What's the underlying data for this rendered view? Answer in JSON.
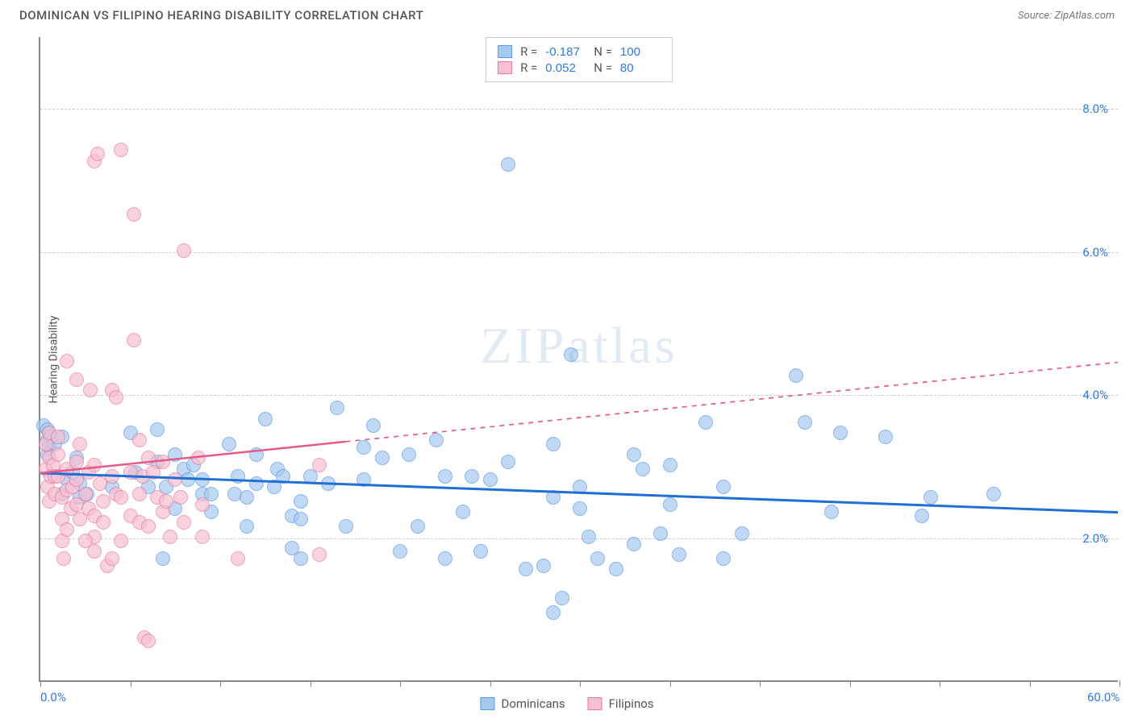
{
  "header": {
    "title": "DOMINICAN VS FILIPINO HEARING DISABILITY CORRELATION CHART",
    "source_label": "Source: ",
    "source_value": "ZipAtlas.com"
  },
  "chart": {
    "type": "scatter",
    "background_color": "#ffffff",
    "grid_color": "#cccccc",
    "axis_color": "#888888",
    "xlim": [
      0,
      60
    ],
    "ylim": [
      0,
      9
    ],
    "x_ticks": [
      0,
      5,
      10,
      15,
      20,
      25,
      30,
      35,
      40,
      45,
      50,
      55,
      60
    ],
    "x_tick_labels_shown": {
      "0": "0.0%",
      "60": "60.0%"
    },
    "y_gridlines": [
      2,
      4,
      6,
      8
    ],
    "y_tick_labels": {
      "2": "2.0%",
      "4": "4.0%",
      "6": "6.0%",
      "8": "8.0%"
    },
    "ylabel": "Hearing Disability",
    "label_fontsize": 14,
    "tick_fontsize": 15,
    "tick_color": "#2f7be0",
    "marker_radius": 9,
    "marker_stroke_width": 1.5,
    "marker_fill_opacity": 0.35,
    "watermark": "ZIPatlas"
  },
  "series": [
    {
      "name": "Dominicans",
      "fill": "#a7c9f0",
      "stroke": "#5a9ae4",
      "trend": {
        "color": "#1f6fd6",
        "width": 3,
        "x0": 0,
        "y0": 2.9,
        "x1": 60,
        "y1": 2.35,
        "dashed_after_x": null
      },
      "points": [
        [
          0.2,
          3.55
        ],
        [
          0.4,
          3.5
        ],
        [
          0.5,
          3.45
        ],
        [
          0.4,
          3.35
        ],
        [
          0.6,
          3.4
        ],
        [
          0.5,
          3.25
        ],
        [
          0.8,
          3.3
        ],
        [
          0.4,
          3.15
        ],
        [
          1.2,
          3.4
        ],
        [
          1.5,
          2.8
        ],
        [
          1.8,
          2.9
        ],
        [
          1.2,
          2.6
        ],
        [
          2.0,
          3.1
        ],
        [
          2.2,
          2.75
        ],
        [
          2.2,
          2.55
        ],
        [
          2.6,
          2.6
        ],
        [
          5.0,
          3.45
        ],
        [
          5.3,
          2.9
        ],
        [
          6.0,
          2.7
        ],
        [
          6.5,
          3.05
        ],
        [
          7.0,
          2.7
        ],
        [
          6.8,
          1.7
        ],
        [
          6.5,
          3.5
        ],
        [
          7.5,
          2.4
        ],
        [
          8.0,
          2.95
        ],
        [
          8.2,
          2.8
        ],
        [
          8.5,
          3.0
        ],
        [
          9.0,
          2.8
        ],
        [
          9.0,
          2.6
        ],
        [
          9.5,
          2.6
        ],
        [
          9.5,
          2.35
        ],
        [
          10.5,
          3.3
        ],
        [
          10.8,
          2.6
        ],
        [
          11.0,
          2.85
        ],
        [
          11.5,
          2.55
        ],
        [
          11.5,
          2.15
        ],
        [
          12.0,
          3.15
        ],
        [
          12.0,
          2.75
        ],
        [
          12.5,
          3.65
        ],
        [
          13.0,
          2.7
        ],
        [
          13.2,
          2.95
        ],
        [
          13.5,
          2.85
        ],
        [
          14.0,
          2.3
        ],
        [
          14.0,
          1.85
        ],
        [
          14.5,
          2.5
        ],
        [
          14.5,
          2.25
        ],
        [
          14.5,
          1.7
        ],
        [
          15.0,
          2.85
        ],
        [
          16.0,
          2.75
        ],
        [
          16.5,
          3.8
        ],
        [
          17.0,
          2.15
        ],
        [
          18.0,
          3.25
        ],
        [
          18.5,
          3.55
        ],
        [
          18.0,
          2.8
        ],
        [
          19.0,
          3.1
        ],
        [
          20.0,
          1.8
        ],
        [
          20.5,
          3.15
        ],
        [
          21.0,
          2.15
        ],
        [
          22.0,
          3.35
        ],
        [
          22.5,
          2.85
        ],
        [
          22.5,
          1.7
        ],
        [
          23.5,
          2.35
        ],
        [
          24.0,
          2.85
        ],
        [
          24.5,
          1.8
        ],
        [
          25.0,
          2.8
        ],
        [
          26.0,
          3.05
        ],
        [
          26.0,
          7.2
        ],
        [
          27.0,
          1.55
        ],
        [
          28.0,
          1.6
        ],
        [
          28.5,
          3.3
        ],
        [
          28.5,
          2.55
        ],
        [
          29.5,
          4.55
        ],
        [
          29.0,
          1.15
        ],
        [
          30.0,
          2.7
        ],
        [
          30.0,
          2.4
        ],
        [
          30.5,
          2.0
        ],
        [
          31.0,
          1.7
        ],
        [
          32.0,
          1.55
        ],
        [
          33.0,
          1.9
        ],
        [
          33.0,
          3.15
        ],
        [
          33.5,
          2.95
        ],
        [
          34.5,
          2.05
        ],
        [
          35.0,
          3.0
        ],
        [
          35.5,
          1.75
        ],
        [
          37.0,
          3.6
        ],
        [
          38.0,
          2.7
        ],
        [
          38.0,
          1.7
        ],
        [
          39.0,
          2.05
        ],
        [
          42.0,
          4.25
        ],
        [
          42.5,
          3.6
        ],
        [
          44.0,
          2.35
        ],
        [
          44.5,
          3.45
        ],
        [
          47.0,
          3.4
        ],
        [
          49.5,
          2.55
        ],
        [
          49.0,
          2.3
        ],
        [
          53.0,
          2.6
        ],
        [
          28.5,
          0.95
        ],
        [
          35.0,
          2.45
        ],
        [
          7.5,
          3.15
        ],
        [
          4.0,
          2.7
        ]
      ]
    },
    {
      "name": "Filipinos",
      "fill": "#f6c0d0",
      "stroke": "#ea7aa1",
      "trend": {
        "color": "#e45a8a",
        "width": 2.5,
        "x0": 0,
        "y0": 2.9,
        "x1": 60,
        "y1": 4.45,
        "dashed_after_x": 17
      },
      "points": [
        [
          0.3,
          2.95
        ],
        [
          0.3,
          3.3
        ],
        [
          0.5,
          3.45
        ],
        [
          0.4,
          2.7
        ],
        [
          0.6,
          2.85
        ],
        [
          0.5,
          3.1
        ],
        [
          0.7,
          3.0
        ],
        [
          0.5,
          2.5
        ],
        [
          0.8,
          2.6
        ],
        [
          0.8,
          2.85
        ],
        [
          1.0,
          3.4
        ],
        [
          1.0,
          3.15
        ],
        [
          1.0,
          2.85
        ],
        [
          1.2,
          2.55
        ],
        [
          1.2,
          2.25
        ],
        [
          1.2,
          1.95
        ],
        [
          1.3,
          1.7
        ],
        [
          1.5,
          4.45
        ],
        [
          1.5,
          2.95
        ],
        [
          1.5,
          2.65
        ],
        [
          1.7,
          2.4
        ],
        [
          1.8,
          2.7
        ],
        [
          2.0,
          4.2
        ],
        [
          2.0,
          3.05
        ],
        [
          2.0,
          2.45
        ],
        [
          2.0,
          2.8
        ],
        [
          2.2,
          2.25
        ],
        [
          2.5,
          2.6
        ],
        [
          2.2,
          3.3
        ],
        [
          2.7,
          2.9
        ],
        [
          2.7,
          2.4
        ],
        [
          2.8,
          4.05
        ],
        [
          3.0,
          3.0
        ],
        [
          3.0,
          2.3
        ],
        [
          3.0,
          2.0
        ],
        [
          3.3,
          2.75
        ],
        [
          3.5,
          2.5
        ],
        [
          3.5,
          2.2
        ],
        [
          3.7,
          1.6
        ],
        [
          3.0,
          7.25
        ],
        [
          3.2,
          7.35
        ],
        [
          4.0,
          4.05
        ],
        [
          4.0,
          2.85
        ],
        [
          4.2,
          3.95
        ],
        [
          4.2,
          2.6
        ],
        [
          4.5,
          7.4
        ],
        [
          4.0,
          1.7
        ],
        [
          4.5,
          2.55
        ],
        [
          5.0,
          2.9
        ],
        [
          5.0,
          2.3
        ],
        [
          5.2,
          4.75
        ],
        [
          5.2,
          6.5
        ],
        [
          5.5,
          2.6
        ],
        [
          5.5,
          2.2
        ],
        [
          5.7,
          2.85
        ],
        [
          5.5,
          3.35
        ],
        [
          6.0,
          3.1
        ],
        [
          6.0,
          2.15
        ],
        [
          6.3,
          2.9
        ],
        [
          6.5,
          2.55
        ],
        [
          6.8,
          3.05
        ],
        [
          6.8,
          2.35
        ],
        [
          7.0,
          2.5
        ],
        [
          7.2,
          2.0
        ],
        [
          7.5,
          2.8
        ],
        [
          7.8,
          2.55
        ],
        [
          8.0,
          6.0
        ],
        [
          8.0,
          2.2
        ],
        [
          8.8,
          3.1
        ],
        [
          9.0,
          2.0
        ],
        [
          9.0,
          2.45
        ],
        [
          5.8,
          0.6
        ],
        [
          3.0,
          1.8
        ],
        [
          2.5,
          1.95
        ],
        [
          1.5,
          2.1
        ],
        [
          4.5,
          1.95
        ],
        [
          11.0,
          1.7
        ],
        [
          15.5,
          3.0
        ],
        [
          15.5,
          1.75
        ],
        [
          6.0,
          0.55
        ]
      ]
    }
  ],
  "legend_top": [
    {
      "swatch_fill": "#a7c9f0",
      "swatch_stroke": "#5a9ae4",
      "r_label": "R =",
      "r_value": "-0.187",
      "n_label": "N =",
      "n_value": "100"
    },
    {
      "swatch_fill": "#f6c0d0",
      "swatch_stroke": "#ea7aa1",
      "r_label": "R =",
      "r_value": "0.052",
      "n_label": "N =",
      "n_value": "80"
    }
  ],
  "legend_bottom": [
    {
      "swatch_fill": "#a7c9f0",
      "swatch_stroke": "#5a9ae4",
      "label": "Dominicans"
    },
    {
      "swatch_fill": "#f6c0d0",
      "swatch_stroke": "#ea7aa1",
      "label": "Filipinos"
    }
  ]
}
